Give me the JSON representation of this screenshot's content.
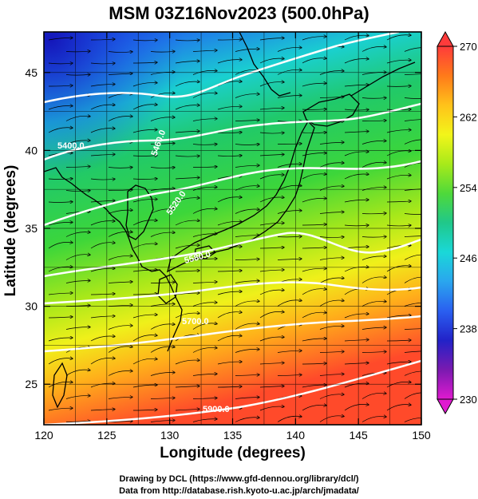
{
  "title": "MSM 03Z16Nov2023 (500.0hPa)",
  "map": {
    "xlabel": "Longitude (degrees)",
    "ylabel": "Latitude  (degrees)",
    "lon_range": [
      120,
      150
    ],
    "lat_range": [
      22.4,
      47.6
    ],
    "lon_ticks": [
      "120",
      "125",
      "130",
      "135",
      "140",
      "145",
      "150"
    ],
    "lat_ticks": [
      "25",
      "30",
      "35",
      "40",
      "45"
    ],
    "grid": true,
    "field": "temperature (K) with streamlines and geopotential height contours"
  },
  "contours": {
    "labels": [
      "5400.0",
      "5460.0",
      "5520.0",
      "5580.0",
      "5700.0",
      "5900.0"
    ],
    "color": "#ffffff"
  },
  "colorbar": {
    "min": 230,
    "max": 270,
    "tick_labels": [
      "270",
      "262",
      "254",
      "246",
      "238",
      "230"
    ],
    "colors": [
      "#ff3b3b",
      "#ff7a1a",
      "#ffc21a",
      "#f2f51a",
      "#a8ea1a",
      "#4fd93a",
      "#20c88a",
      "#1ad8d8",
      "#2aa6ee",
      "#2a5ff0",
      "#2222c8",
      "#7a1ab0",
      "#e01ad0"
    ]
  },
  "credits": {
    "line1": "Drawing by DCL (https://www.gfd-dennou.org/library/dcl/)",
    "line2": "Data from http://database.rish.kyoto-u.ac.jp/arch/jmadata/"
  }
}
